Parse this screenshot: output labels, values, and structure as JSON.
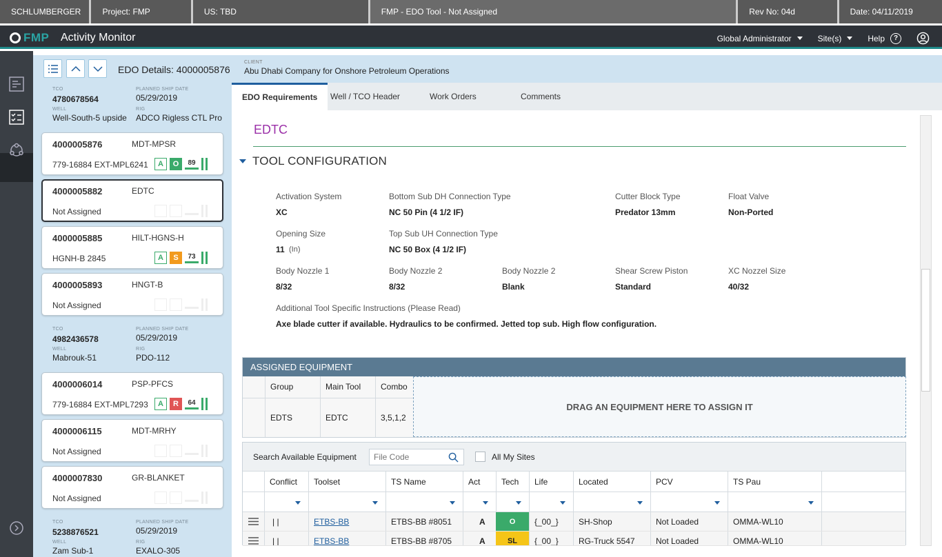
{
  "topbar": {
    "company": "SCHLUMBERGER",
    "project": "Project:  FMP",
    "us": "US:  TBD",
    "tool_status": "FMP - EDO Tool - Not Assigned",
    "rev": "Rev No:  04d",
    "date": "Date:  04/11/2019"
  },
  "appbar": {
    "logo_text": "FMP",
    "app_name": "Activity Monitor",
    "role": "Global Administrator",
    "sites": "Site(s)",
    "help": "Help",
    "help_glyph": "?"
  },
  "header": {
    "edo_title": "EDO Details: 4000005876",
    "client_label": "CLIENT",
    "client_value": "Abu Dhabi Company for Onshore Petroleum Operations"
  },
  "sidebar": {
    "groups": [
      {
        "tco_label": "TCO",
        "tco": "4780678564",
        "ship_label": "PLANNED SHIP DATE",
        "ship": "05/29/2019",
        "well_label": "WELL",
        "well": "Well-South-5 upside",
        "rig_label": "RIG",
        "rig": "ADCO Rigless CTL Pro"
      },
      {
        "tco_label": "TCO",
        "tco": "4982436578",
        "ship_label": "PLANNED SHIP DATE",
        "ship": "05/29/2019",
        "well_label": "WELL",
        "well": "Mabrouk-51",
        "rig_label": "RIG",
        "rig": "PDO-112"
      },
      {
        "tco_label": "TCO",
        "tco": "5238876521",
        "ship_label": "PLANNED SHIP DATE",
        "ship": "05/29/2019",
        "well_label": "WELL",
        "well": "Zam Sub-1",
        "rig_label": "RIG",
        "rig": "EXALO-305"
      }
    ],
    "cards": [
      {
        "id": "4000005876",
        "code": "MDT-MPSR",
        "sub": "779-16884 EXT-MPL6241",
        "badge1": "A",
        "badge2": "O",
        "badge2_color": "#3aaa6a",
        "score": "89"
      },
      {
        "id": "4000005882",
        "code": "EDTC",
        "sub": "Not Assigned"
      },
      {
        "id": "4000005885",
        "code": "HILT-HGNS-H",
        "sub": "HGNH-B 2845",
        "badge1": "A",
        "badge2": "S",
        "badge2_color": "#f29a1d",
        "score": "73"
      },
      {
        "id": "4000005893",
        "code": "HNGT-B",
        "sub": "Not Assigned"
      },
      {
        "id": "4000006014",
        "code": "PSP-PFCS",
        "sub": "779-16884 EXT-MPL7293",
        "badge1": "A",
        "badge2": "R",
        "badge2_color": "#e05555",
        "score": "64"
      },
      {
        "id": "4000006115",
        "code": "MDT-MRHY",
        "sub": "Not Assigned"
      },
      {
        "id": "4000007830",
        "code": "GR-BLANKET",
        "sub": "Not Assigned"
      }
    ]
  },
  "tabs": [
    "EDO Requirements",
    "Well / TCO Header",
    "Work Orders",
    "Comments"
  ],
  "main": {
    "tool_name": "EDTC",
    "section_title": "TOOL CONFIGURATION",
    "fields": {
      "activation_label": "Activation System",
      "activation": "XC",
      "bottom_sub_label": "Bottom Sub DH Connection Type",
      "bottom_sub": "NC 50 Pin  (4 1/2 IF)",
      "cutter_label": "Cutter Block Type",
      "cutter": "Predator 13mm",
      "float_label": "Float Valve",
      "float": "Non-Ported",
      "opening_label": "Opening Size",
      "opening": "11",
      "opening_unit": "(In)",
      "top_sub_label": "Top Sub UH Connection Type",
      "top_sub": "NC 50 Box (4 1/2 IF)",
      "nozzle1_label": "Body Nozzle 1",
      "nozzle1": "8/32",
      "nozzle2_label": "Body Nozzle 2",
      "nozzle2": "8/32",
      "nozzle2b_label": "Body Nozzle 2",
      "nozzle2b": "Blank",
      "shear_label": "Shear Screw Piston",
      "shear": "Standard",
      "xc_label": "XC Nozzel Size",
      "xc": "40/32",
      "instr_label": "Additional Tool Specific Instructions (Please Read)",
      "instr": "Axe blade cutter if available. Hydraulics to be confirmed. Jetted top sub. High flow configuration."
    }
  },
  "assigned": {
    "title": "ASSIGNED EQUIPMENT",
    "columns": [
      "Group",
      "Main Tool",
      "Combo"
    ],
    "row": [
      "EDTS",
      "EDTC",
      "3,5,1,2"
    ],
    "drop_text": "DRAG AN EQUIPMENT HERE TO ASSIGN IT"
  },
  "available": {
    "search_label": "Search Available Equipment",
    "search_placeholder": "File Code",
    "all_sites_label": "All My Sites",
    "columns": [
      "Conflict",
      "Toolset",
      "TS Name",
      "Act",
      "Tech",
      "Life",
      "Located",
      "PCV",
      "TS Pau"
    ],
    "rows": [
      {
        "conflict": "| |",
        "toolset": "ETBS-BB",
        "ts_name": "ETBS-BB #8051",
        "act": "A",
        "tech": "O",
        "tech_color": "#3aaa6a",
        "life": "{_00_}",
        "located": "SH-Shop",
        "pcv": "Not Loaded",
        "ts_pau": "OMMA-WL10"
      },
      {
        "conflict": "| |",
        "toolset": "ETBS-BB",
        "ts_name": "ETBS-BB #8705",
        "act": "A",
        "tech": "SL",
        "tech_color": "#f5c518",
        "life": "{_00_}",
        "located": "RG-Truck 5547",
        "pcv": "Not Loaded",
        "ts_pau": "OMMA-WL10"
      }
    ]
  }
}
